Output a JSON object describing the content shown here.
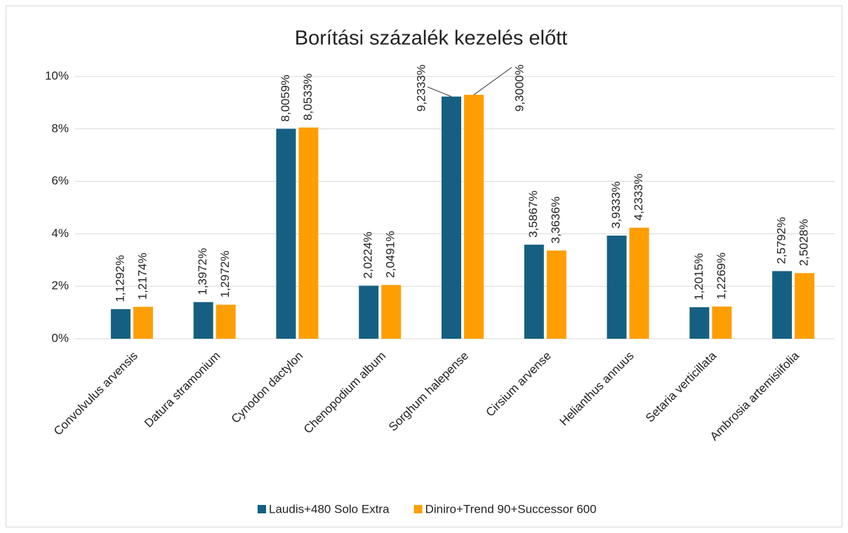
{
  "chart_data": {
    "type": "bar",
    "title": "Borítási százalék kezelés előtt",
    "categories": [
      "Convolvulus arvensis",
      "Datura stramonium",
      "Cynodon dactylon",
      "Chenopodium album",
      "Sorghum halepense",
      "Cirsium arvense",
      "Helianthus annuus",
      "Setaria verticillata",
      "Ambrosia artemisiifolia"
    ],
    "series": [
      {
        "name": "Laudis+480 Solo Extra",
        "color": "#156082",
        "values": [
          1.1292,
          1.3972,
          8.0059,
          2.0224,
          9.2333,
          3.5867,
          3.9333,
          1.2015,
          2.5792
        ],
        "value_labels": [
          "1,1292%",
          "1,3972%",
          "8,0059%",
          "2,0224%",
          "9,2333%",
          "3,5867%",
          "3,9333%",
          "1,2015%",
          "2,5792%"
        ]
      },
      {
        "name": "Diniro+Trend 90+Successor 600",
        "color": "#ff9e00",
        "values": [
          1.2174,
          1.2972,
          8.0533,
          2.0491,
          9.3,
          3.3636,
          4.2333,
          1.2269,
          2.5028
        ],
        "value_labels": [
          "1,2174%",
          "1,2972%",
          "8,0533%",
          "2,0491%",
          "9,3000%",
          "3,3636%",
          "4,2333%",
          "1,2269%",
          "2,5028%"
        ]
      }
    ],
    "ylim": [
      0,
      10
    ],
    "yticks": [
      {
        "value": 0,
        "label": "0%"
      },
      {
        "value": 2,
        "label": "2%"
      },
      {
        "value": 4,
        "label": "4%"
      },
      {
        "value": 6,
        "label": "6%"
      },
      {
        "value": 8,
        "label": "8%"
      },
      {
        "value": 10,
        "label": "10%"
      }
    ],
    "grid": true,
    "legend": "bottom"
  }
}
